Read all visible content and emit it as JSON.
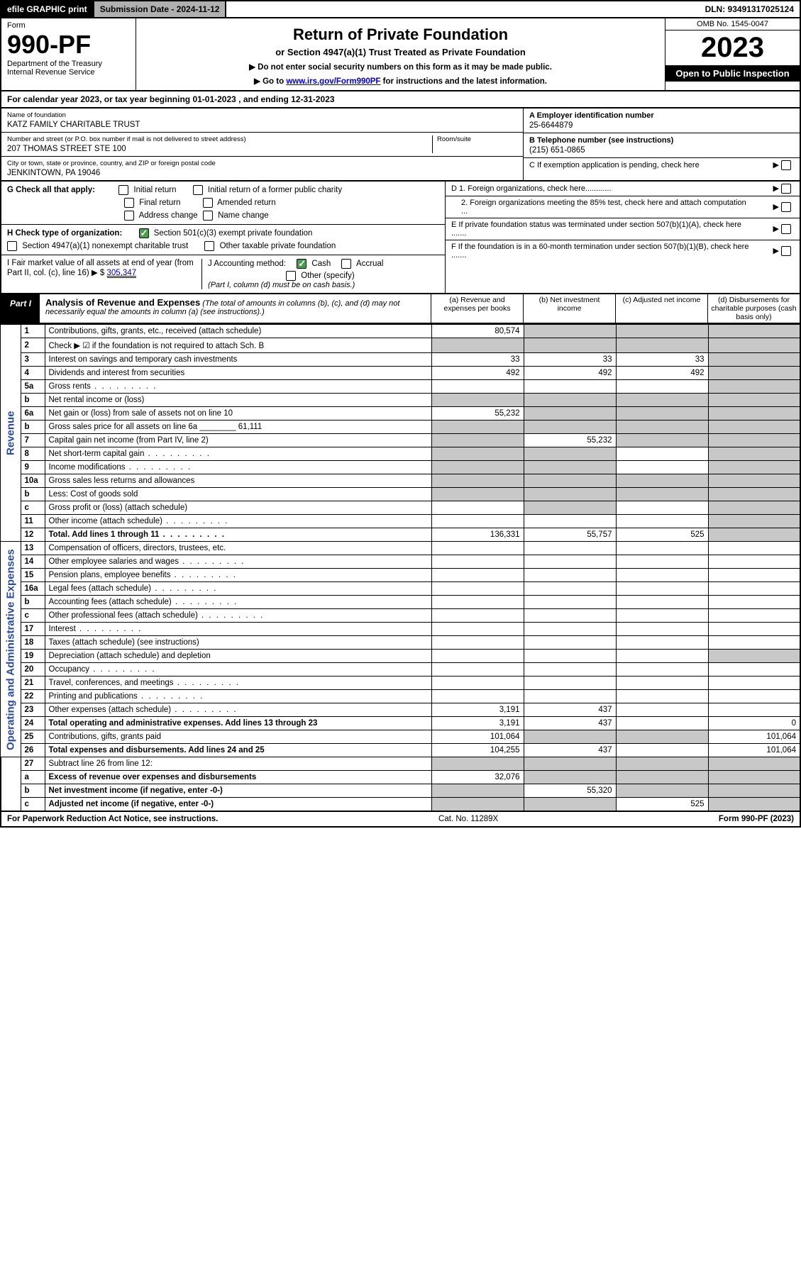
{
  "topbar": {
    "efile": "efile GRAPHIC print",
    "submission": "Submission Date - 2024-11-12",
    "dln": "DLN: 93491317025124"
  },
  "header": {
    "form_label": "Form",
    "form_number": "990-PF",
    "dept": "Department of the Treasury",
    "irs": "Internal Revenue Service",
    "title": "Return of Private Foundation",
    "subtitle": "or Section 4947(a)(1) Trust Treated as Private Foundation",
    "note1": "▶ Do not enter social security numbers on this form as it may be made public.",
    "note2_pre": "▶ Go to ",
    "note2_link": "www.irs.gov/Form990PF",
    "note2_post": " for instructions and the latest information.",
    "omb": "OMB No. 1545-0047",
    "year": "2023",
    "open": "Open to Public Inspection"
  },
  "cal_year": "For calendar year 2023, or tax year beginning 01-01-2023                           , and ending 12-31-2023",
  "info": {
    "name_label": "Name of foundation",
    "name": "KATZ FAMILY CHARITABLE TRUST",
    "addr_label": "Number and street (or P.O. box number if mail is not delivered to street address)",
    "addr": "207 THOMAS STREET STE 100",
    "room_label": "Room/suite",
    "city_label": "City or town, state or province, country, and ZIP or foreign postal code",
    "city": "JENKINTOWN, PA  19046",
    "A_label": "A Employer identification number",
    "A_val": "25-6644879",
    "B_label": "B Telephone number (see instructions)",
    "B_val": "(215) 651-0865",
    "C_label": "C If exemption application is pending, check here"
  },
  "checks": {
    "G": "G Check all that apply:",
    "G_opts": [
      "Initial return",
      "Initial return of a former public charity",
      "Final return",
      "Amended return",
      "Address change",
      "Name change"
    ],
    "H": "H Check type of organization:",
    "H1": "Section 501(c)(3) exempt private foundation",
    "H2": "Section 4947(a)(1) nonexempt charitable trust",
    "H3": "Other taxable private foundation",
    "I_label": "I Fair market value of all assets at end of year (from Part II, col. (c), line 16)  ▶ $",
    "I_val": "305,347",
    "J_label": "J Accounting method:",
    "J_cash": "Cash",
    "J_accrual": "Accrual",
    "J_other": "Other (specify)",
    "J_note": "(Part I, column (d) must be on cash basis.)",
    "D1": "D 1. Foreign organizations, check here............",
    "D2": "2. Foreign organizations meeting the 85% test, check here and attach computation ...",
    "E": "E  If private foundation status was terminated under section 507(b)(1)(A), check here .......",
    "F": "F  If the foundation is in a 60-month termination under section 507(b)(1)(B), check here ......."
  },
  "part1": {
    "tag": "Part I",
    "title": "Analysis of Revenue and Expenses",
    "note": " (The total of amounts in columns (b), (c), and (d) may not necessarily equal the amounts in column (a) (see instructions).)",
    "col_a": "(a)  Revenue and expenses per books",
    "col_b": "(b)  Net investment income",
    "col_c": "(c)  Adjusted net income",
    "col_d": "(d)  Disbursements for charitable purposes (cash basis only)"
  },
  "sections": {
    "revenue": "Revenue",
    "expenses": "Operating and Administrative Expenses"
  },
  "rows": [
    {
      "sec": "rev",
      "n": "1",
      "d": "Contributions, gifts, grants, etc., received (attach schedule)",
      "a": "80,574",
      "bgrey": true,
      "cgrey": true,
      "dgrey": true
    },
    {
      "sec": "rev",
      "n": "2",
      "d": "Check ▶ ☑ if the foundation is not required to attach Sch. B",
      "a": "",
      "agrey": true,
      "bgrey": true,
      "cgrey": true,
      "dgrey": true,
      "bold_not": true
    },
    {
      "sec": "rev",
      "n": "3",
      "d": "Interest on savings and temporary cash investments",
      "a": "33",
      "b": "33",
      "c": "33",
      "dgrey": true
    },
    {
      "sec": "rev",
      "n": "4",
      "d": "Dividends and interest from securities",
      "a": "492",
      "b": "492",
      "c": "492",
      "dgrey": true
    },
    {
      "sec": "rev",
      "n": "5a",
      "d": "Gross rents",
      "dots": true,
      "dgrey": true
    },
    {
      "sec": "rev",
      "n": "b",
      "d": "Net rental income or (loss)",
      "agrey": true,
      "bgrey": true,
      "cgrey": true,
      "dgrey": true
    },
    {
      "sec": "rev",
      "n": "6a",
      "d": "Net gain or (loss) from sale of assets not on line 10",
      "a": "55,232",
      "bgrey": true,
      "cgrey": true,
      "dgrey": true
    },
    {
      "sec": "rev",
      "n": "b",
      "d": "Gross sales price for all assets on line 6a ________ 61,111",
      "agrey": true,
      "bgrey": true,
      "cgrey": true,
      "dgrey": true
    },
    {
      "sec": "rev",
      "n": "7",
      "d": "Capital gain net income (from Part IV, line 2)",
      "agrey": true,
      "b": "55,232",
      "cgrey": true,
      "dgrey": true
    },
    {
      "sec": "rev",
      "n": "8",
      "d": "Net short-term capital gain",
      "dots": true,
      "agrey": true,
      "bgrey": true,
      "dgrey": true
    },
    {
      "sec": "rev",
      "n": "9",
      "d": "Income modifications",
      "dots": true,
      "agrey": true,
      "bgrey": true,
      "dgrey": true
    },
    {
      "sec": "rev",
      "n": "10a",
      "d": "Gross sales less returns and allowances",
      "agrey": true,
      "bgrey": true,
      "cgrey": true,
      "dgrey": true
    },
    {
      "sec": "rev",
      "n": "b",
      "d": "Less: Cost of goods sold",
      "agrey": true,
      "bgrey": true,
      "cgrey": true,
      "dgrey": true
    },
    {
      "sec": "rev",
      "n": "c",
      "d": "Gross profit or (loss) (attach schedule)",
      "bgrey": true,
      "dgrey": true
    },
    {
      "sec": "rev",
      "n": "11",
      "d": "Other income (attach schedule)",
      "dots": true,
      "dgrey": true
    },
    {
      "sec": "rev",
      "n": "12",
      "d": "Total. Add lines 1 through 11",
      "dots": true,
      "bold": true,
      "a": "136,331",
      "b": "55,757",
      "c": "525",
      "dgrey": true
    },
    {
      "sec": "exp",
      "n": "13",
      "d": "Compensation of officers, directors, trustees, etc."
    },
    {
      "sec": "exp",
      "n": "14",
      "d": "Other employee salaries and wages",
      "dots": true
    },
    {
      "sec": "exp",
      "n": "15",
      "d": "Pension plans, employee benefits",
      "dots": true
    },
    {
      "sec": "exp",
      "n": "16a",
      "d": "Legal fees (attach schedule)",
      "dots": true
    },
    {
      "sec": "exp",
      "n": "b",
      "d": "Accounting fees (attach schedule)",
      "dots": true
    },
    {
      "sec": "exp",
      "n": "c",
      "d": "Other professional fees (attach schedule)",
      "dots": true
    },
    {
      "sec": "exp",
      "n": "17",
      "d": "Interest",
      "dots": true
    },
    {
      "sec": "exp",
      "n": "18",
      "d": "Taxes (attach schedule) (see instructions)"
    },
    {
      "sec": "exp",
      "n": "19",
      "d": "Depreciation (attach schedule) and depletion",
      "dgrey": true
    },
    {
      "sec": "exp",
      "n": "20",
      "d": "Occupancy",
      "dots": true
    },
    {
      "sec": "exp",
      "n": "21",
      "d": "Travel, conferences, and meetings",
      "dots": true
    },
    {
      "sec": "exp",
      "n": "22",
      "d": "Printing and publications",
      "dots": true
    },
    {
      "sec": "exp",
      "n": "23",
      "d": "Other expenses (attach schedule)",
      "dots": true,
      "a": "3,191",
      "b": "437"
    },
    {
      "sec": "exp",
      "n": "24",
      "d": "Total operating and administrative expenses. Add lines 13 through 23",
      "bold": true,
      "a": "3,191",
      "b": "437",
      "dval": "0"
    },
    {
      "sec": "exp",
      "n": "25",
      "d": "Contributions, gifts, grants paid",
      "a": "101,064",
      "bgrey": true,
      "cgrey": true,
      "dval": "101,064"
    },
    {
      "sec": "exp",
      "n": "26",
      "d": "Total expenses and disbursements. Add lines 24 and 25",
      "bold": true,
      "a": "104,255",
      "b": "437",
      "dval": "101,064"
    },
    {
      "sec": "bot",
      "n": "27",
      "d": "Subtract line 26 from line 12:",
      "agrey": true,
      "bgrey": true,
      "cgrey": true,
      "dgrey": true
    },
    {
      "sec": "bot",
      "n": "a",
      "d": "Excess of revenue over expenses and disbursements",
      "bold": true,
      "a": "32,076",
      "bgrey": true,
      "cgrey": true,
      "dgrey": true
    },
    {
      "sec": "bot",
      "n": "b",
      "d": "Net investment income (if negative, enter -0-)",
      "bold": true,
      "agrey": true,
      "b": "55,320",
      "cgrey": true,
      "dgrey": true
    },
    {
      "sec": "bot",
      "n": "c",
      "d": "Adjusted net income (if negative, enter -0-)",
      "bold": true,
      "agrey": true,
      "bgrey": true,
      "c": "525",
      "dgrey": true
    }
  ],
  "footer": {
    "left": "For Paperwork Reduction Act Notice, see instructions.",
    "mid": "Cat. No. 11289X",
    "right": "Form 990-PF (2023)"
  }
}
